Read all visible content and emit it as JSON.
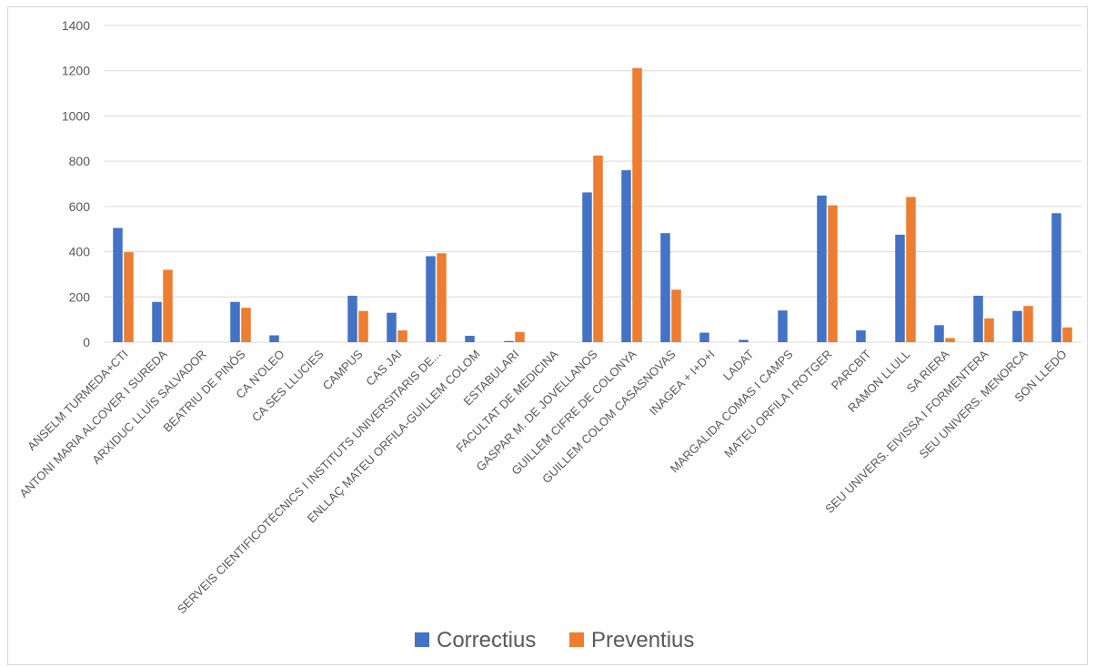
{
  "chart_data": {
    "type": "bar",
    "title": "",
    "xlabel": "",
    "ylabel": "",
    "ylim": [
      0,
      1400
    ],
    "yticks": [
      0,
      200,
      400,
      600,
      800,
      1000,
      1200,
      1400
    ],
    "grid": true,
    "legend_position": "bottom",
    "categories": [
      "ANSELM TURMEDA+CTI",
      "ANTONI MARIA ALCOVER I SUREDA",
      "ARXIDUC LLUÍS SALVADOR",
      "BEATRIU DE PINÓS",
      "CA N'OLEO",
      "CA SES LLUCIES",
      "CAMPUS",
      "CAS JAI",
      "SERVEIS CIENTIFICOTÈCNICS I INSTITUTS UNIVERSITARIS DE...",
      "ENLLAÇ MATEU ORFILA-GUILLEM COLOM",
      "ESTABULARI",
      "FACULTAT DE MEDICINA",
      "GASPAR M. DE JOVELLANOS",
      "GUILLEM CIFRE DE COLONYA",
      "GUILLEM COLOM CASASNOVAS",
      "INAGEA + I+D+I",
      "LADAT",
      "MARGALIDA COMAS I CAMPS",
      "MATEU ORFILA I ROTGER",
      "PARCBIT",
      "RAMON LLULL",
      "SA RIERA",
      "SEU UNIVERS. EIVISSA I FORMENTERA",
      "SEU UNIVERS. MENORCA",
      "SON LLEDÓ"
    ],
    "series": [
      {
        "name": "Correctius",
        "color": "#4472C4",
        "values": [
          505,
          178,
          0,
          178,
          30,
          0,
          205,
          130,
          380,
          28,
          5,
          0,
          662,
          760,
          482,
          42,
          10,
          140,
          648,
          52,
          475,
          75,
          205,
          138,
          570
        ]
      },
      {
        "name": "Preventius",
        "color": "#ED7D31",
        "values": [
          398,
          320,
          0,
          152,
          0,
          0,
          138,
          52,
          393,
          0,
          45,
          0,
          825,
          1212,
          232,
          0,
          0,
          0,
          605,
          0,
          642,
          18,
          105,
          160,
          65
        ]
      }
    ]
  }
}
